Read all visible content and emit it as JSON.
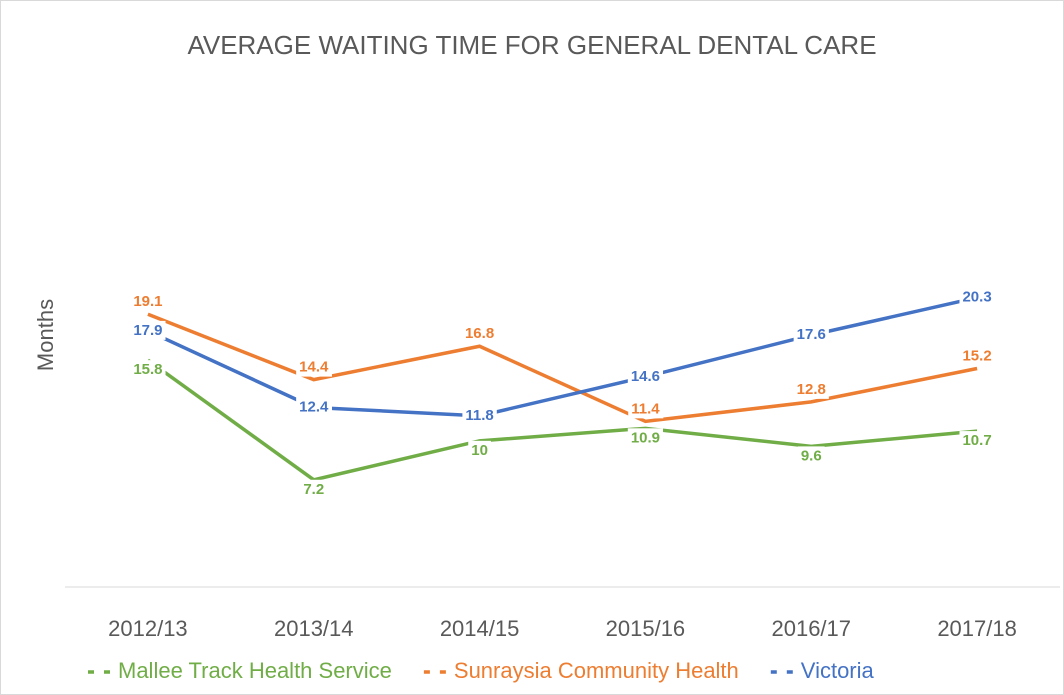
{
  "chart_data": {
    "type": "line",
    "title": "AVERAGE WAITING TIME FOR GENERAL DENTAL CARE",
    "y_label": "Months",
    "categories": [
      "2012/13",
      "2013/14",
      "2014/15",
      "2015/16",
      "2016/17",
      "2017/18"
    ],
    "series": [
      {
        "name": "Mallee Track Health Service",
        "color": "#70ad47",
        "values": [
          15.8,
          7.2,
          10,
          10.9,
          9.6,
          10.7
        ]
      },
      {
        "name": "Sunraysia Community Health",
        "color": "#ed7d31",
        "values": [
          19.1,
          14.4,
          16.8,
          11.4,
          12.8,
          15.2
        ]
      },
      {
        "name": "Victoria",
        "color": "#4472c4",
        "values": [
          17.9,
          12.4,
          11.8,
          14.6,
          17.6,
          20.3
        ]
      }
    ],
    "ylim": [
      0,
      35
    ],
    "grid": false,
    "legend": "bottom"
  }
}
